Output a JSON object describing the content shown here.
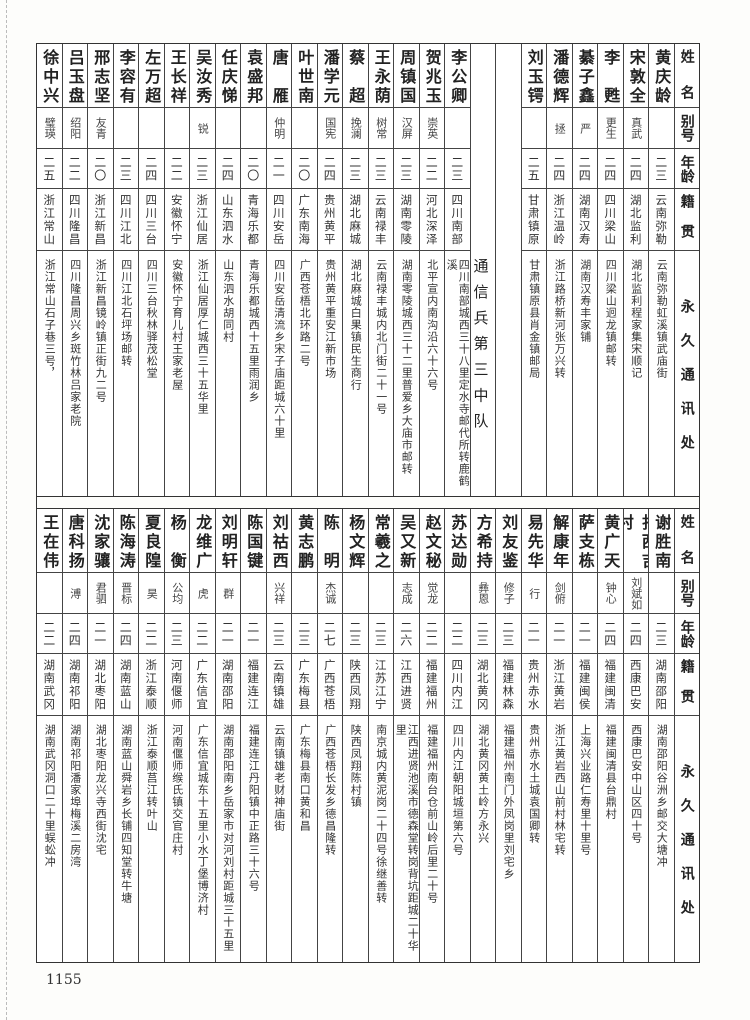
{
  "headers": {
    "name": "姓名",
    "alias": "别号",
    "age": "年龄",
    "native": "籍贯",
    "address": "永久通讯处"
  },
  "top": {
    "rows_right": [
      {
        "name": "黄庆龄",
        "alias": "",
        "age": "二三",
        "native": "云南弥勒",
        "address": "云南弥勒虹溪镇武庙街"
      },
      {
        "name": "宋敦全",
        "alias": "真武",
        "age": "二四",
        "native": "湖北监利",
        "address": "湖北监利程家集宋顺记"
      },
      {
        "name": "李甦",
        "alias": "更生",
        "age": "二四",
        "native": "四川梁山",
        "address": "四川梁山迥龙镇邮转"
      },
      {
        "name": "綦子鑫",
        "alias": "严",
        "age": "二四",
        "native": "湖南汉寿",
        "address": "湖南汉寿丰家铺"
      },
      {
        "name": "潘德辉",
        "alias": "拯",
        "age": "二四",
        "native": "浙江温岭",
        "address": "浙江路桥新河张万兴转"
      },
      {
        "name": "刘玉锷",
        "alias": "",
        "age": "二五",
        "native": "甘肃镇原",
        "address": "甘肃镇原县肖金镇邮局"
      }
    ],
    "section_label": "通信兵第三中队",
    "rows_left": [
      {
        "name": "李公卿",
        "alias": "",
        "age": "二三",
        "native": "四川南部",
        "address": "四川南部城西三十八里定水寺邮代所转鹿鹤溪"
      },
      {
        "name": "贺兆玉",
        "alias": "崇英",
        "age": "二二",
        "native": "河北深泽",
        "address": "北平宣内南沟沿六十六号"
      },
      {
        "name": "周镇国",
        "alias": "汉屏",
        "age": "二三",
        "native": "湖南零陵",
        "address": "湖南零陵城西三十二里普爱乡大庙市邮转"
      },
      {
        "name": "王永荫",
        "alias": "树常",
        "age": "二三",
        "native": "云南禄丰",
        "address": "云南禄丰城内北门街二十一号"
      },
      {
        "name": "蔡超",
        "alias": "挽澜",
        "age": "二三",
        "native": "湖北麻城",
        "address": "湖北麻城白果镇民生商行"
      },
      {
        "name": "潘学元",
        "alias": "国宪",
        "age": "二四",
        "native": "贵州黄平",
        "address": "贵州黄平重安江新市场"
      },
      {
        "name": "叶世南",
        "alias": "",
        "age": "二〇",
        "native": "广东南海",
        "address": "广西苍梧北环路二号"
      },
      {
        "name": "唐雁",
        "alias": "仲明",
        "age": "二一",
        "native": "四川安岳",
        "address": "四川安岳清流乡宋子庙距城六十里"
      },
      {
        "name": "袁盛邦",
        "alias": "",
        "age": "二〇",
        "native": "青海乐都",
        "address": "青海乐都城西十五里雨润乡"
      },
      {
        "name": "任庆悌",
        "alias": "",
        "age": "二四",
        "native": "山东泗水",
        "address": "山东泗水胡同村"
      },
      {
        "name": "吴汝秀",
        "alias": "锐",
        "age": "二三",
        "native": "浙江仙居",
        "address": "浙江仙居厚仁城西三十五华里"
      },
      {
        "name": "王长祥",
        "alias": "",
        "age": "二二",
        "native": "安徽怀宁",
        "address": "安徽怀宁育儿村王家老屋"
      },
      {
        "name": "左万超",
        "alias": "",
        "age": "二四",
        "native": "四川三台",
        "address": "四川三台秋林驿茂松堂"
      },
      {
        "name": "李容有",
        "alias": "",
        "age": "二三",
        "native": "四川江北",
        "address": "四川江北石坪场邮转"
      },
      {
        "name": "邢志坚",
        "alias": "友青",
        "age": "二〇",
        "native": "浙江新昌",
        "address": "浙江新昌镜岭镇正街九二号"
      },
      {
        "name": "吕玉盘",
        "alias": "绍阳",
        "age": "二二",
        "native": "四川隆昌",
        "address": "四川隆昌周兴乡斑竹林吕家老院"
      },
      {
        "name": "徐中兴",
        "alias": "璧瑛",
        "age": "二五",
        "native": "浙江常山",
        "address": "浙江常山石子巷三号，"
      }
    ]
  },
  "bottom": {
    "rows": [
      {
        "name": "谢胜南",
        "alias": "",
        "age": "二三",
        "native": "湖南邵阳",
        "address": "湖南邵阳谷洲乡邮交大塘冲"
      },
      {
        "name": "扎西吉村",
        "alias": "刘斌如",
        "age": "二四",
        "native": "西康巴安",
        "address": "西康巴安中山区四十号"
      },
      {
        "name": "黄广天",
        "alias": "钟心",
        "age": "二四",
        "native": "福建闽清",
        "address": "福建闽清县台鼎村"
      },
      {
        "name": "萨支栋",
        "alias": "",
        "age": "二一",
        "native": "福建闽侯",
        "address": "上海兴业路仁寿里十里号"
      },
      {
        "name": "解康年",
        "alias": "剑俯",
        "age": "二一",
        "native": "浙江黄岩",
        "address": "浙江黄岩西山前村林宅转"
      },
      {
        "name": "易先华",
        "alias": "行",
        "age": "二一",
        "native": "贵州赤水",
        "address": "贵州赤水土城袁国卿转"
      },
      {
        "name": "刘友鉴",
        "alias": "修子",
        "age": "二三",
        "native": "福建林森",
        "address": "福建福州南门外凤岗里刘宅乡"
      },
      {
        "name": "方希持",
        "alias": "彝恩",
        "age": "二三",
        "native": "湖北黄冈",
        "address": "湖北黄冈黄土岭方永兴"
      },
      {
        "name": "苏达勋",
        "alias": "",
        "age": "二二",
        "native": "四川内江",
        "address": "四川内江朝阳城垣第六号"
      },
      {
        "name": "赵文秘",
        "alias": "觉龙",
        "age": "二二",
        "native": "福建福州",
        "address": "福建福州南台仓前山岭后里二十号"
      },
      {
        "name": "吴又新",
        "alias": "志成",
        "age": "二六",
        "native": "江西进贤",
        "address": "江西进贤池溪市德森堂转岗背坑距城二十华里"
      },
      {
        "name": "常羲之",
        "alias": "",
        "age": "二三",
        "native": "江苏江宁",
        "address": "南京城内黄泥岗二十四号徐继善转"
      },
      {
        "name": "杨文辉",
        "alias": "",
        "age": "二三",
        "native": "陕西凤翔",
        "address": "陕西凤翔陈村镇"
      },
      {
        "name": "陈明",
        "alias": "杰诚",
        "age": "二七",
        "native": "广西苍梧",
        "address": "广西苍梧长发乡德昌隆转"
      },
      {
        "name": "黄志鹏",
        "alias": "",
        "age": "二三",
        "native": "广东梅县",
        "address": "广东梅县南口黄和昌"
      },
      {
        "name": "刘祜西",
        "alias": "兴祥",
        "age": "二三",
        "native": "云南镇雄",
        "address": "云南镇雄老财神庙街"
      },
      {
        "name": "陈国键",
        "alias": "",
        "age": "二一",
        "native": "福建连江",
        "address": "福建连江丹阳镇中正路三十六号"
      },
      {
        "name": "刘明轩",
        "alias": "群",
        "age": "二一",
        "native": "湖南邵阳",
        "address": "湖南邵阳南乡岳家市对河刘村距城三十五里"
      },
      {
        "name": "龙维广",
        "alias": "虎",
        "age": "二二",
        "native": "广东信宜",
        "address": "广东信宜城东十五里小水丁堡博济村"
      },
      {
        "name": "杨衡",
        "alias": "公均",
        "age": "二三",
        "native": "河南偃师",
        "address": "河南偃师缑氏镇交官庄村"
      },
      {
        "name": "夏良隍",
        "alias": "昊",
        "age": "二二",
        "native": "浙江泰顺",
        "address": "浙江泰顺莒江转叶山"
      },
      {
        "name": "陈海涛",
        "alias": "晋标",
        "age": "二四",
        "native": "湖南蓝山",
        "address": "湖南蓝山舜岩乡长铺四知堂转牛塘"
      },
      {
        "name": "沈家骧",
        "alias": "君驷",
        "age": "二一",
        "native": "湖北枣阳",
        "address": "湖北枣阳龙兴寺西街沈宅"
      },
      {
        "name": "唐科扬",
        "alias": "溥",
        "age": "二四",
        "native": "湖南祁阳",
        "address": "湖南祁阳潘家埠梅溪二房湾"
      },
      {
        "name": "王在伟",
        "alias": "",
        "age": "二二",
        "native": "湖南武冈",
        "address": "湖南武冈洞口二十里蜈蚣冲"
      }
    ]
  },
  "page_number": "1155"
}
